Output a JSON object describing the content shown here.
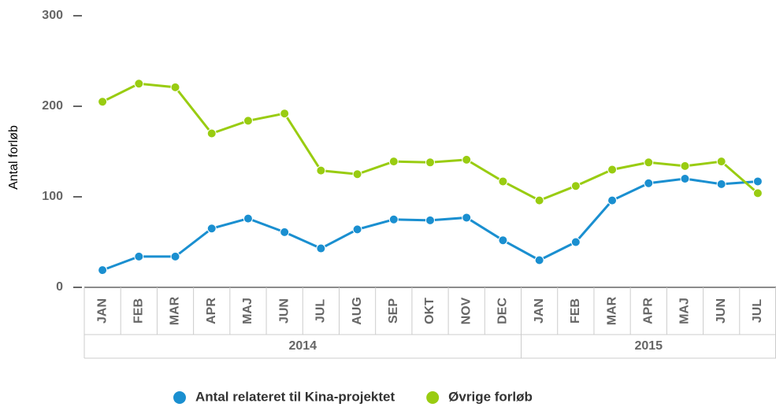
{
  "chart_data": {
    "type": "line",
    "y_label": "Antal forløb",
    "category_groups": [
      {
        "name": "2014",
        "categories": [
          "JAN",
          "FEB",
          "MAR",
          "APR",
          "MAJ",
          "JUN",
          "JUL",
          "AUG",
          "SEP",
          "OKT",
          "NOV",
          "DEC"
        ]
      },
      {
        "name": "2015",
        "categories": [
          "JAN",
          "FEB",
          "MAR",
          "APR",
          "MAJ",
          "JUN",
          "JUL"
        ]
      }
    ],
    "series": [
      {
        "name": "Antal relateret til Kina-projektet",
        "color": "#1a8fd0",
        "values": [
          19,
          34,
          34,
          65,
          76,
          61,
          43,
          64,
          75,
          74,
          77,
          52,
          30,
          50,
          96,
          115,
          120,
          114,
          117
        ]
      },
      {
        "name": "Øvrige forløb",
        "color": "#99cc11",
        "values": [
          205,
          225,
          221,
          170,
          184,
          192,
          129,
          125,
          139,
          138,
          141,
          117,
          96,
          112,
          130,
          138,
          134,
          139,
          104
        ]
      }
    ],
    "ylim": [
      0,
      300
    ],
    "yticks": [
      0,
      100,
      200,
      300
    ],
    "grid": false,
    "legend": "bottom"
  }
}
